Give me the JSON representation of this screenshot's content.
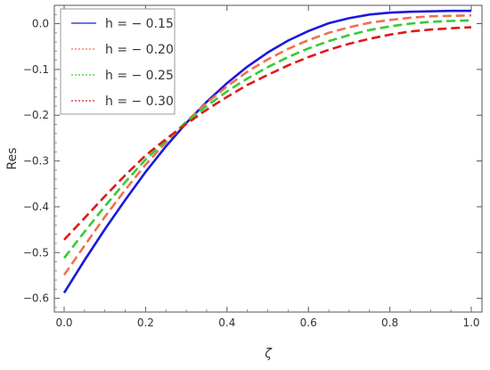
{
  "chart_data": {
    "type": "line",
    "xlabel": "ζ",
    "ylabel": "Res",
    "xlim": [
      0,
      1
    ],
    "ylim": [
      -0.63,
      0.04
    ],
    "xticks": [
      "0.0",
      "0.2",
      "0.4",
      "0.6",
      "0.8",
      "1.0"
    ],
    "xtick_values": [
      0,
      0.2,
      0.4,
      0.6,
      0.8,
      1.0
    ],
    "yticks": [
      "0.0",
      "−0.1",
      "−0.2",
      "−0.3",
      "−0.4",
      "−0.5",
      "−0.6"
    ],
    "ytick_values": [
      0,
      -0.1,
      -0.2,
      -0.3,
      -0.4,
      -0.5,
      -0.6
    ],
    "grid": false,
    "legend_position": "top-left",
    "x": [
      0.0,
      0.05,
      0.1,
      0.15,
      0.2,
      0.25,
      0.3,
      0.35,
      0.4,
      0.45,
      0.5,
      0.55,
      0.6,
      0.65,
      0.7,
      0.75,
      0.8,
      0.85,
      0.9,
      0.95,
      1.0
    ],
    "series": [
      {
        "name": "h = − 0.15",
        "color": "#1a1adb",
        "dash": "solid",
        "values": [
          -0.588,
          -0.517,
          -0.449,
          -0.385,
          -0.324,
          -0.268,
          -0.217,
          -0.171,
          -0.13,
          -0.094,
          -0.063,
          -0.037,
          -0.016,
          0.001,
          0.012,
          0.02,
          0.024,
          0.026,
          0.027,
          0.028,
          0.028
        ]
      },
      {
        "name": "h = − 0.20",
        "color": "#f07050",
        "dash": "dashed",
        "values": [
          -0.549,
          -0.485,
          -0.422,
          -0.363,
          -0.308,
          -0.259,
          -0.214,
          -0.173,
          -0.137,
          -0.105,
          -0.078,
          -0.055,
          -0.036,
          -0.02,
          -0.008,
          0.002,
          0.008,
          0.013,
          0.016,
          0.017,
          0.018
        ]
      },
      {
        "name": "h = − 0.25",
        "color": "#33cc33",
        "dash": "dashed",
        "values": [
          -0.512,
          -0.455,
          -0.399,
          -0.346,
          -0.297,
          -0.255,
          -0.215,
          -0.18,
          -0.148,
          -0.12,
          -0.095,
          -0.073,
          -0.054,
          -0.038,
          -0.025,
          -0.014,
          -0.006,
          0.0,
          0.004,
          0.006,
          0.007
        ]
      },
      {
        "name": "h = − 0.30",
        "color": "#dd1a1a",
        "dash": "dashed",
        "values": [
          -0.472,
          -0.425,
          -0.377,
          -0.331,
          -0.288,
          -0.252,
          -0.219,
          -0.188,
          -0.16,
          -0.134,
          -0.112,
          -0.091,
          -0.073,
          -0.057,
          -0.044,
          -0.033,
          -0.024,
          -0.017,
          -0.013,
          -0.01,
          -0.008
        ]
      }
    ]
  }
}
